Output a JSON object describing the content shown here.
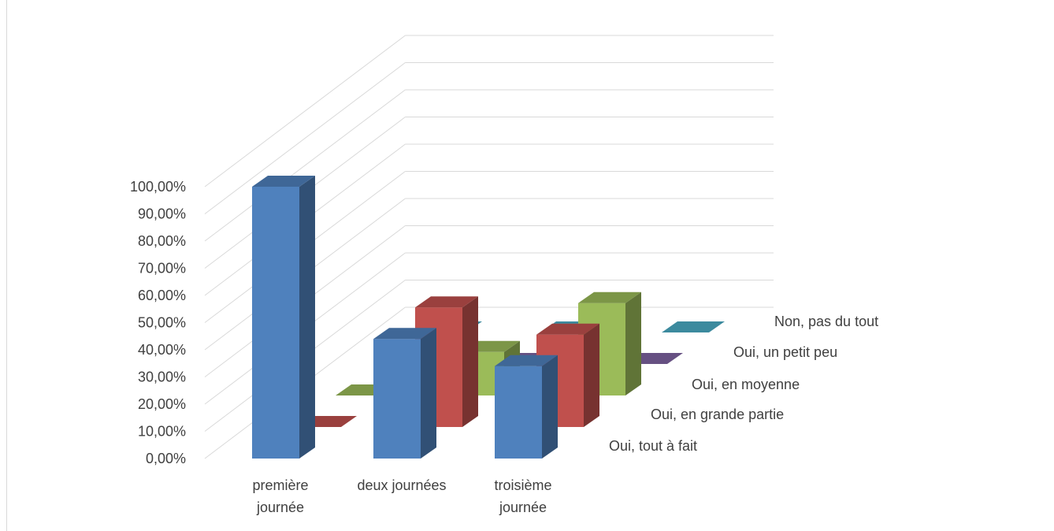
{
  "chart_data": {
    "type": "bar",
    "subtype": "3d-column",
    "title": "",
    "xlabel": "",
    "ylabel": "",
    "ylim": [
      0,
      1
    ],
    "y_ticks": [
      "0,00%",
      "10,00%",
      "20,00%",
      "30,00%",
      "40,00%",
      "50,00%",
      "60,00%",
      "70,00%",
      "80,00%",
      "90,00%",
      "100,00%"
    ],
    "categories": [
      "première journée",
      "deux journées",
      "troisième journée"
    ],
    "series": [
      {
        "name": "Oui, tout à fait",
        "values": [
          1.0,
          0.44,
          0.34
        ],
        "color": "#4f81bd"
      },
      {
        "name": "Oui, en grande partie",
        "values": [
          0.0,
          0.44,
          0.34
        ],
        "color": "#c0504d"
      },
      {
        "name": "Oui, en moyenne",
        "values": [
          0.0,
          0.16,
          0.34
        ],
        "color": "#9bbb59"
      },
      {
        "name": "Oui, un petit peu",
        "values": [
          0.0,
          0.0,
          0.0
        ],
        "color": "#8064a2"
      },
      {
        "name": "Non, pas du tout",
        "values": [
          0.0,
          0.0,
          0.0
        ],
        "color": "#4bacc6"
      }
    ],
    "grid": true,
    "legend": "none"
  }
}
